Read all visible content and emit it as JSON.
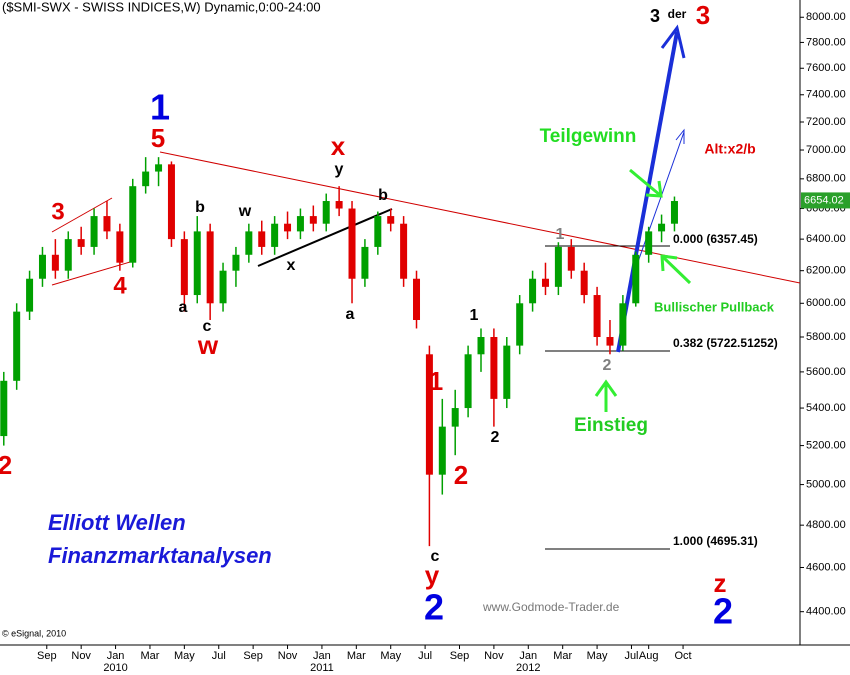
{
  "chart_data": {
    "type": "candlestick",
    "log_y": true,
    "title": "($SMI-SWX - SWISS INDICES,W) Dynamic,0:00-24:00",
    "credit": "© eSignal, 2010",
    "watermark": "www.Godmode-Trader.de",
    "brand": [
      "Elliott Wellen",
      "Finanzmarktanalysen"
    ],
    "up_color": "#00a000",
    "down_color": "#e00000",
    "xlim": [
      5.28,
      51.8
    ],
    "ylim": [
      4255,
      8140
    ],
    "xticks": [
      {
        "value": 8,
        "label": "Sep"
      },
      {
        "value": 10,
        "label": "Nov"
      },
      {
        "value": 12,
        "label": "Jan"
      },
      {
        "value": 14,
        "label": "Mar"
      },
      {
        "value": 16,
        "label": "May"
      },
      {
        "value": 18,
        "label": "Jul"
      },
      {
        "value": 20,
        "label": "Sep"
      },
      {
        "value": 22,
        "label": "Nov"
      },
      {
        "value": 24,
        "label": "Jan"
      },
      {
        "value": 26,
        "label": "Mar"
      },
      {
        "value": 28,
        "label": "May"
      },
      {
        "value": 30,
        "label": "Jul"
      },
      {
        "value": 32,
        "label": "Sep"
      },
      {
        "value": 34,
        "label": "Nov"
      },
      {
        "value": 36,
        "label": "Jan"
      },
      {
        "value": 38,
        "label": "Mar"
      },
      {
        "value": 40,
        "label": "May"
      },
      {
        "value": 42,
        "label": "Jul"
      },
      {
        "value": 43,
        "label": "Aug"
      },
      {
        "value": 45,
        "label": "Oct"
      }
    ],
    "year_labels": [
      {
        "value": 12,
        "label": "2010"
      },
      {
        "value": 24,
        "label": "2011"
      },
      {
        "value": 36,
        "label": "2012"
      }
    ],
    "yticks": [
      {
        "value": 4400,
        "label": "4400.00"
      },
      {
        "value": 4600,
        "label": "4600.00"
      },
      {
        "value": 4800,
        "label": "4800.00"
      },
      {
        "value": 5000,
        "label": "5000.00"
      },
      {
        "value": 5200,
        "label": "5200.00"
      },
      {
        "value": 5400,
        "label": "5400.00"
      },
      {
        "value": 5600,
        "label": "5600.00"
      },
      {
        "value": 5800,
        "label": "5800.00"
      },
      {
        "value": 6000,
        "label": "6000.00"
      },
      {
        "value": 6200,
        "label": "6200.00"
      },
      {
        "value": 6400,
        "label": "6400.00"
      },
      {
        "value": 6600,
        "label": "6600.00"
      },
      {
        "value": 6800,
        "label": "6800.00"
      },
      {
        "value": 7000,
        "label": "7000.00"
      },
      {
        "value": 7200,
        "label": "7200.00"
      },
      {
        "value": 7400,
        "label": "7400.00"
      },
      {
        "value": 7600,
        "label": "7600.00"
      },
      {
        "value": 7800,
        "label": "7800.00"
      },
      {
        "value": 8000,
        "label": "8000.00"
      }
    ],
    "last_price": 6654.02,
    "x": [
      5.5,
      6.25,
      7,
      7.75,
      8.5,
      9.25,
      10,
      10.75,
      11.5,
      12.25,
      13,
      13.75,
      14.5,
      15.25,
      16,
      16.75,
      17.5,
      18.25,
      19,
      19.75,
      20.5,
      21.25,
      22,
      22.75,
      23.5,
      24.25,
      25,
      25.75,
      26.5,
      27.25,
      28,
      28.75,
      29.5,
      30.25,
      31,
      31.75,
      32.5,
      33.25,
      34,
      34.75,
      35.5,
      36.25,
      37,
      37.75,
      38.5,
      39.25,
      40,
      40.75,
      41.5,
      42.25,
      43,
      43.75,
      44.5
    ],
    "ohlc": [
      [
        5250,
        5600,
        5200,
        5550
      ],
      [
        5550,
        6000,
        5500,
        5950
      ],
      [
        5950,
        6200,
        5900,
        6150
      ],
      [
        6150,
        6350,
        6100,
        6300
      ],
      [
        6300,
        6400,
        6150,
        6200
      ],
      [
        6200,
        6450,
        6150,
        6400
      ],
      [
        6400,
        6480,
        6300,
        6350
      ],
      [
        6350,
        6600,
        6300,
        6550
      ],
      [
        6550,
        6650,
        6400,
        6450
      ],
      [
        6450,
        6500,
        6200,
        6250
      ],
      [
        6250,
        6800,
        6220,
        6750
      ],
      [
        6750,
        6950,
        6700,
        6850
      ],
      [
        6850,
        6950,
        6750,
        6900
      ],
      [
        6900,
        6920,
        6350,
        6400
      ],
      [
        6400,
        6450,
        5950,
        6050
      ],
      [
        6050,
        6550,
        6000,
        6450
      ],
      [
        6450,
        6500,
        5900,
        6000
      ],
      [
        6000,
        6250,
        5950,
        6200
      ],
      [
        6200,
        6350,
        6100,
        6300
      ],
      [
        6300,
        6500,
        6250,
        6450
      ],
      [
        6450,
        6520,
        6300,
        6350
      ],
      [
        6350,
        6550,
        6300,
        6500
      ],
      [
        6500,
        6580,
        6400,
        6450
      ],
      [
        6450,
        6600,
        6400,
        6550
      ],
      [
        6550,
        6620,
        6450,
        6500
      ],
      [
        6500,
        6700,
        6450,
        6650
      ],
      [
        6650,
        6750,
        6550,
        6600
      ],
      [
        6600,
        6650,
        6000,
        6150
      ],
      [
        6150,
        6400,
        6100,
        6350
      ],
      [
        6350,
        6580,
        6300,
        6550
      ],
      [
        6550,
        6600,
        6450,
        6500
      ],
      [
        6500,
        6550,
        6100,
        6150
      ],
      [
        6150,
        6200,
        5850,
        5900
      ],
      [
        5700,
        5750,
        4700,
        5050
      ],
      [
        5050,
        5450,
        4950,
        5300
      ],
      [
        5300,
        5500,
        5150,
        5400
      ],
      [
        5400,
        5750,
        5350,
        5700
      ],
      [
        5700,
        5850,
        5600,
        5800
      ],
      [
        5800,
        5850,
        5300,
        5450
      ],
      [
        5450,
        5800,
        5400,
        5750
      ],
      [
        5750,
        6050,
        5700,
        6000
      ],
      [
        6000,
        6200,
        5950,
        6150
      ],
      [
        6150,
        6250,
        6050,
        6100
      ],
      [
        6100,
        6380,
        6050,
        6350
      ],
      [
        6350,
        6400,
        6150,
        6200
      ],
      [
        6200,
        6250,
        6000,
        6050
      ],
      [
        6050,
        6100,
        5750,
        5800
      ],
      [
        5800,
        5900,
        5700,
        5750
      ],
      [
        5750,
        6050,
        5720,
        6000
      ],
      [
        6000,
        6320,
        5980,
        6300
      ],
      [
        6300,
        6480,
        6250,
        6450
      ],
      [
        6450,
        6560,
        6380,
        6500
      ],
      [
        6500,
        6680,
        6450,
        6650
      ]
    ],
    "annotations": [
      {
        "text": "2",
        "color": "#e00000"
      },
      {
        "text": "3",
        "color": "#e00000"
      },
      {
        "text": "4",
        "color": "#e00000"
      },
      {
        "text": "1",
        "color": "#0000e0"
      },
      {
        "text": "5",
        "color": "#e00000"
      },
      {
        "text": "a",
        "color": "#000000"
      },
      {
        "text": "b",
        "color": "#000000"
      },
      {
        "text": "c",
        "color": "#000000"
      },
      {
        "text": "w",
        "color": "#e00000"
      },
      {
        "text": "w",
        "color": "#000000"
      },
      {
        "text": "x",
        "color": "#000000"
      },
      {
        "text": "x",
        "color": "#e00000"
      },
      {
        "text": "y",
        "color": "#000000"
      },
      {
        "text": "b",
        "color": "#000000"
      },
      {
        "text": "a",
        "color": "#000000"
      },
      {
        "text": "1",
        "color": "#e00000"
      },
      {
        "text": "2",
        "color": "#e00000"
      },
      {
        "text": "c",
        "color": "#000000"
      },
      {
        "text": "y",
        "color": "#e00000"
      },
      {
        "text": "2",
        "color": "#0000e0"
      },
      {
        "text": "1",
        "color": "#000000"
      },
      {
        "text": "2",
        "color": "#000000"
      },
      {
        "text": "1",
        "color": "#808080"
      },
      {
        "text": "2",
        "color": "#808080"
      },
      {
        "text": "Teilgewinn",
        "color": "#22dd22"
      },
      {
        "text": "Alt:x2/b",
        "color": "#e00000"
      },
      {
        "text": "0.000 (6357.45)",
        "color": "#000000"
      },
      {
        "text": "Bullischer Pullback",
        "color": "#22cc22"
      },
      {
        "text": "0.382 (5722.51252)",
        "color": "#000000"
      },
      {
        "text": "Einstieg",
        "color": "#22cc22"
      },
      {
        "text": "1.000 (4695.31)",
        "color": "#000000"
      },
      {
        "text": "3",
        "color": "#000000"
      },
      {
        "text": "der",
        "color": "#000000"
      },
      {
        "text": "3",
        "color": "#e00000"
      },
      {
        "text": "z",
        "color": "#e00000"
      },
      {
        "text": "2",
        "color": "#0000e0"
      }
    ]
  }
}
